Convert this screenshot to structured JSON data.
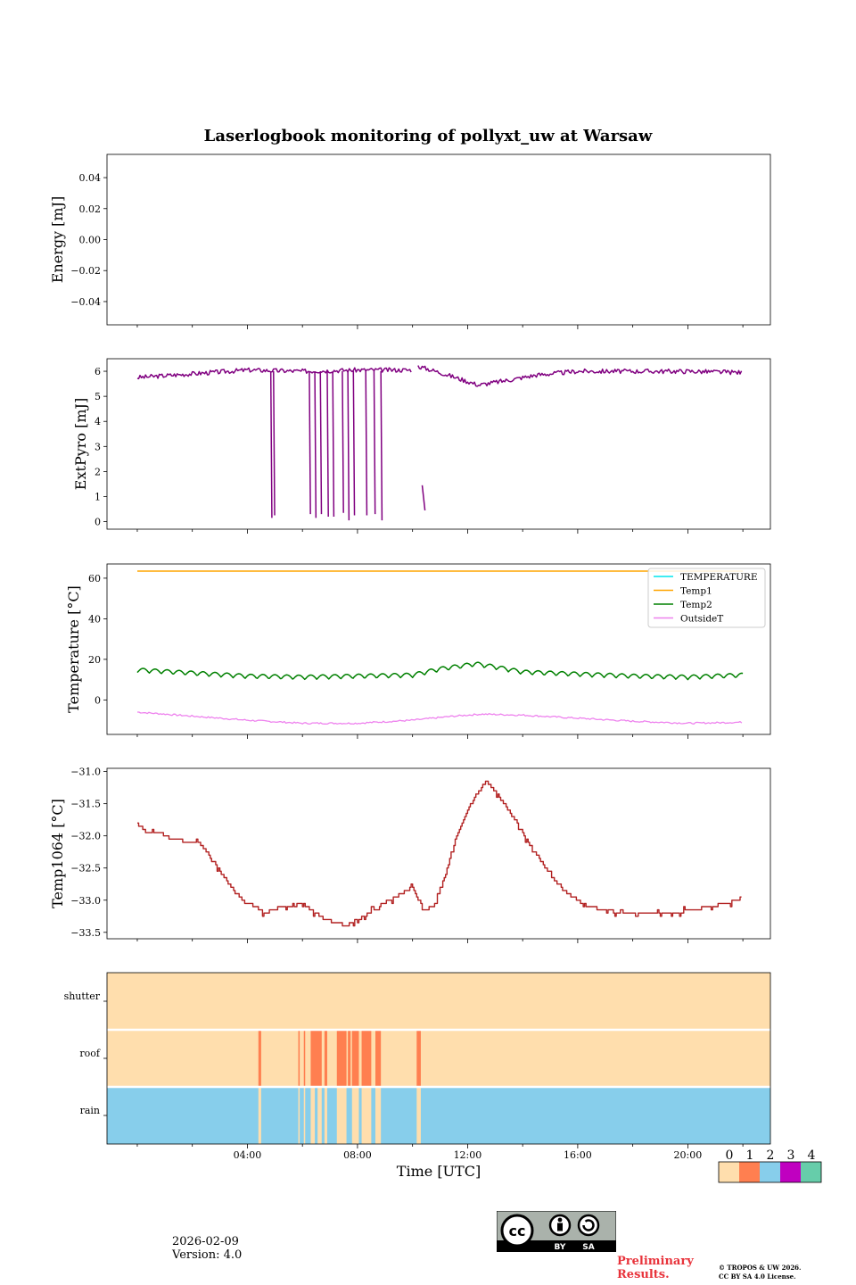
{
  "title": "Laserlogbook monitoring of pollyxt_uw at Warsaw",
  "footer": {
    "date": "2026-02-09",
    "version": "Version: 4.0",
    "preliminary_line1": "Preliminary",
    "preliminary_line2": "Results.",
    "copyright_line1": "© TROPOS & UW 2026.",
    "copyright_line2": "CC BY SA 4.0 License.",
    "license_badge": {
      "text_by": "BY",
      "text_sa": "SA"
    }
  },
  "colors": {
    "extpyro": "#800080",
    "temperature": "#00e5ee",
    "temp1": "#ffa500",
    "temp2": "#008000",
    "outsideT": "#ee82ee",
    "temp1064": "#b22222",
    "status0": "#ffdead",
    "status1": "#ff7f50",
    "status2": "#87ceeb",
    "status3": "#c000c0",
    "status4": "#66cdaa"
  },
  "chart_data": [
    {
      "type": "line",
      "id": "energy",
      "ylabel": "Energy [mJ]",
      "ylim": [
        -0.055,
        0.055
      ],
      "yticks": [
        "0.04",
        "0.02",
        "0.00",
        "−0.02",
        "−0.04"
      ],
      "ytick_values": [
        0.04,
        0.02,
        0.0,
        -0.02,
        -0.04
      ],
      "series": []
    },
    {
      "type": "line",
      "id": "extpyro",
      "ylabel": "ExtPyro [mJ]",
      "ylim": [
        -0.3,
        6.5
      ],
      "yticks": [
        "6",
        "5",
        "4",
        "3",
        "2",
        "1",
        "0"
      ],
      "ytick_values": [
        6,
        5,
        4,
        3,
        2,
        1,
        0
      ],
      "series": [
        {
          "name": "ExtPyro",
          "baseline": [
            [
              0.0,
              5.75
            ],
            [
              2.0,
              5.9
            ],
            [
              4.0,
              6.05
            ],
            [
              6.0,
              6.0
            ],
            [
              8.0,
              6.05
            ],
            [
              10.0,
              6.05
            ]
          ],
          "baseline2": [
            [
              10.2,
              6.2
            ],
            [
              11.0,
              5.95
            ],
            [
              12.4,
              5.45
            ],
            [
              13.5,
              5.65
            ],
            [
              14.5,
              5.85
            ],
            [
              16.0,
              6.0
            ],
            [
              20.0,
              6.0
            ],
            [
              22.0,
              5.95
            ]
          ],
          "drops": [
            [
              4.85,
              0.15
            ],
            [
              4.95,
              0.25
            ],
            [
              6.25,
              0.3
            ],
            [
              6.45,
              0.15
            ],
            [
              6.65,
              0.3
            ],
            [
              6.9,
              0.2
            ],
            [
              7.1,
              0.2
            ],
            [
              7.45,
              0.35
            ],
            [
              7.65,
              0.05
            ],
            [
              7.85,
              0.25
            ],
            [
              8.3,
              0.25
            ],
            [
              8.6,
              0.3
            ],
            [
              8.85,
              0.05
            ]
          ],
          "tail": [
            [
              10.35,
              1.45
            ],
            [
              10.45,
              0.45
            ]
          ]
        }
      ]
    },
    {
      "type": "line",
      "id": "temperature",
      "ylabel": "Temperature [°C]",
      "ylim": [
        -17,
        67
      ],
      "yticks": [
        "60",
        "40",
        "20",
        "0"
      ],
      "ytick_values": [
        60,
        40,
        20,
        0
      ],
      "legend": [
        "TEMPERATURE",
        "Temp1",
        "Temp2",
        "OutsideT"
      ],
      "legend_position": "upper right",
      "series": [
        {
          "name": "Temp1",
          "constant": 63.5
        },
        {
          "name": "Temp2",
          "points": [
            [
              0.0,
              14.5
            ],
            [
              2.0,
              13.0
            ],
            [
              4.0,
              11.5
            ],
            [
              6.0,
              11.0
            ],
            [
              8.0,
              11.5
            ],
            [
              10.0,
              12.0
            ],
            [
              11.0,
              15.0
            ],
            [
              12.3,
              17.5
            ],
            [
              13.0,
              16.0
            ],
            [
              14.0,
              13.5
            ],
            [
              16.0,
              12.5
            ],
            [
              18.0,
              11.5
            ],
            [
              20.0,
              11.0
            ],
            [
              22.0,
              12.0
            ]
          ],
          "oscillation": 2.2
        },
        {
          "name": "OutsideT",
          "points": [
            [
              0.0,
              -6.0
            ],
            [
              2.0,
              -8.0
            ],
            [
              4.0,
              -10.0
            ],
            [
              6.0,
              -11.5
            ],
            [
              8.0,
              -11.5
            ],
            [
              10.0,
              -10.0
            ],
            [
              11.5,
              -8.0
            ],
            [
              12.5,
              -7.0
            ],
            [
              14.0,
              -7.5
            ],
            [
              16.0,
              -9.0
            ],
            [
              18.0,
              -10.5
            ],
            [
              20.0,
              -11.5
            ],
            [
              22.0,
              -11.0
            ]
          ]
        }
      ]
    },
    {
      "type": "line",
      "id": "temp1064",
      "ylabel": "Temp1064 [°C]",
      "ylim": [
        -33.6,
        -30.95
      ],
      "yticks": [
        "−31.0",
        "−31.5",
        "−32.0",
        "−32.5",
        "−33.0",
        "−33.5"
      ],
      "ytick_values": [
        -31.0,
        -31.5,
        -32.0,
        -32.5,
        -33.0,
        -33.5
      ],
      "series": [
        {
          "name": "Temp1064",
          "points": [
            [
              0.0,
              -31.8
            ],
            [
              0.3,
              -31.95
            ],
            [
              0.8,
              -31.95
            ],
            [
              1.2,
              -32.05
            ],
            [
              2.0,
              -32.1
            ],
            [
              2.2,
              -32.1
            ],
            [
              2.6,
              -32.3
            ],
            [
              3.0,
              -32.55
            ],
            [
              3.4,
              -32.8
            ],
            [
              3.8,
              -33.0
            ],
            [
              4.3,
              -33.1
            ],
            [
              4.6,
              -33.2
            ],
            [
              5.3,
              -33.1
            ],
            [
              5.6,
              -33.1
            ],
            [
              6.0,
              -33.05
            ],
            [
              6.3,
              -33.15
            ],
            [
              6.8,
              -33.3
            ],
            [
              7.2,
              -33.35
            ],
            [
              7.6,
              -33.4
            ],
            [
              8.0,
              -33.3
            ],
            [
              8.4,
              -33.2
            ],
            [
              8.8,
              -33.1
            ],
            [
              9.2,
              -33.0
            ],
            [
              9.6,
              -32.9
            ],
            [
              10.0,
              -32.8
            ],
            [
              10.4,
              -33.15
            ],
            [
              10.8,
              -33.1
            ],
            [
              11.2,
              -32.6
            ],
            [
              11.6,
              -32.0
            ],
            [
              12.0,
              -31.6
            ],
            [
              12.4,
              -31.3
            ],
            [
              12.7,
              -31.15
            ],
            [
              13.0,
              -31.3
            ],
            [
              13.4,
              -31.55
            ],
            [
              13.8,
              -31.8
            ],
            [
              14.2,
              -32.1
            ],
            [
              14.6,
              -32.35
            ],
            [
              15.0,
              -32.6
            ],
            [
              15.5,
              -32.85
            ],
            [
              16.0,
              -33.0
            ],
            [
              16.4,
              -33.1
            ],
            [
              17.0,
              -33.15
            ],
            [
              17.5,
              -33.2
            ],
            [
              18.5,
              -33.2
            ],
            [
              19.5,
              -33.2
            ],
            [
              20.2,
              -33.15
            ],
            [
              20.8,
              -33.1
            ],
            [
              21.4,
              -33.05
            ],
            [
              21.8,
              -33.0
            ],
            [
              22.0,
              -32.95
            ]
          ]
        }
      ]
    },
    {
      "type": "heatmap",
      "id": "status",
      "rows": [
        "shutter",
        "roof",
        "rain"
      ],
      "roof_flags": [
        [
          4.4,
          4.5
        ],
        [
          5.85,
          5.9
        ],
        [
          6.05,
          6.1
        ],
        [
          6.3,
          6.7
        ],
        [
          6.8,
          6.9
        ],
        [
          7.25,
          7.6
        ],
        [
          7.65,
          7.75
        ],
        [
          7.8,
          8.05
        ],
        [
          8.15,
          8.5
        ],
        [
          8.65,
          8.85
        ],
        [
          10.15,
          10.3
        ]
      ],
      "rain_dry": [
        [
          4.4,
          4.5
        ],
        [
          5.85,
          5.9
        ],
        [
          6.05,
          6.1
        ],
        [
          6.3,
          6.45
        ],
        [
          6.55,
          6.7
        ],
        [
          6.8,
          6.9
        ],
        [
          7.25,
          7.6
        ],
        [
          7.8,
          8.05
        ],
        [
          8.15,
          8.5
        ],
        [
          8.65,
          8.85
        ],
        [
          10.15,
          10.3
        ]
      ],
      "colorbar_labels": [
        "0",
        "1",
        "2",
        "3",
        "4"
      ]
    }
  ],
  "xaxis": {
    "xlabel": "Time [UTC]",
    "range_hours": [
      -1.1,
      23.0
    ],
    "major_ticks": [
      "04:00",
      "08:00",
      "12:00",
      "16:00",
      "20:00"
    ],
    "major_tick_hours": [
      4,
      8,
      12,
      16,
      20
    ]
  }
}
